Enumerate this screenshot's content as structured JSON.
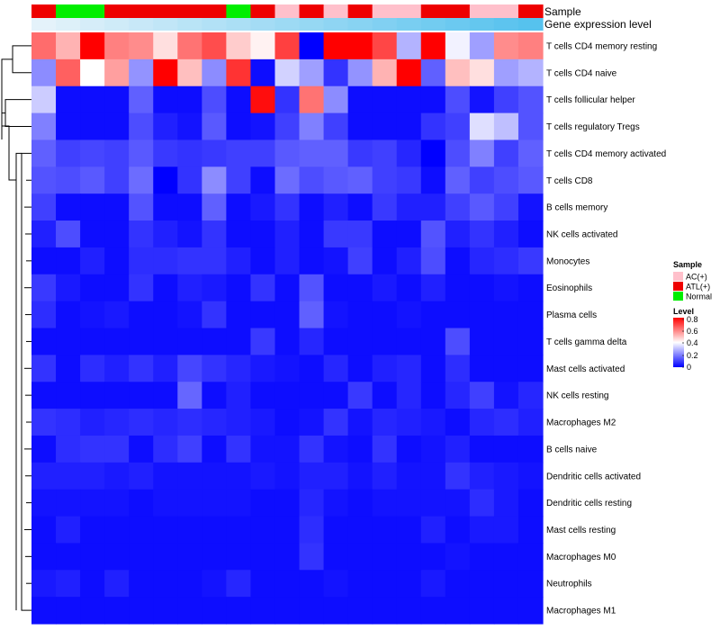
{
  "chart_data": {
    "type": "heatmap",
    "title": "",
    "annotation_rows": [
      {
        "name": "Sample",
        "values": [
          "ATL(+)",
          "Normal",
          "Normal",
          "ATL(+)",
          "ATL(+)",
          "ATL(+)",
          "ATL(+)",
          "ATL(+)",
          "Normal",
          "ATL(+)",
          "AC(+)",
          "ATL(+)",
          "AC(+)",
          "ATL(+)",
          "AC(+)",
          "AC(+)",
          "ATL(+)",
          "ATL(+)",
          "AC(+)",
          "AC(+)",
          "ATL(+)"
        ]
      },
      {
        "name": "Gene expression level",
        "values": [
          0.02,
          0.03,
          0.04,
          0.05,
          0.06,
          0.07,
          0.08,
          0.09,
          0.1,
          0.11,
          0.12,
          0.13,
          0.14,
          0.15,
          0.16,
          0.17,
          0.18,
          0.19,
          0.2,
          0.21,
          0.22
        ]
      }
    ],
    "rows": [
      "T cells CD4 memory resting",
      "T cells CD4 naive",
      "T cells follicular helper",
      "T cells regulatory  Tregs",
      "T cells CD4 memory activated",
      "T cells CD8",
      "B cells memory",
      "NK cells activated",
      "Monocytes",
      "Eosinophils",
      "Plasma cells",
      "T cells gamma delta",
      "Mast cells activated",
      "NK cells resting",
      "Macrophages M2",
      "B cells naive",
      "Dendritic cells activated",
      "Dendritic cells resting",
      "Mast cells resting",
      "Macrophages M0",
      "Neutrophils",
      "Macrophages M1"
    ],
    "values": [
      [
        0.63,
        0.52,
        0.8,
        0.6,
        0.58,
        0.45,
        0.62,
        0.68,
        0.48,
        0.42,
        0.7,
        0.0,
        0.8,
        0.8,
        0.69,
        0.28,
        0.8,
        0.38,
        0.25,
        0.58,
        0.6
      ],
      [
        0.22,
        0.65,
        0.4,
        0.55,
        0.23,
        0.8,
        0.5,
        0.22,
        0.72,
        0.02,
        0.33,
        0.25,
        0.08,
        0.23,
        0.52,
        0.8,
        0.15,
        0.5,
        0.45,
        0.25,
        0.28
      ],
      [
        0.32,
        0.02,
        0.02,
        0.02,
        0.15,
        0.02,
        0.02,
        0.12,
        0.02,
        0.78,
        0.08,
        0.62,
        0.22,
        0.02,
        0.02,
        0.02,
        0.02,
        0.12,
        0.03,
        0.1,
        0.13
      ],
      [
        0.2,
        0.02,
        0.02,
        0.02,
        0.12,
        0.05,
        0.03,
        0.14,
        0.02,
        0.03,
        0.1,
        0.2,
        0.1,
        0.02,
        0.02,
        0.02,
        0.08,
        0.1,
        0.35,
        0.3,
        0.13
      ],
      [
        0.15,
        0.1,
        0.11,
        0.1,
        0.14,
        0.09,
        0.08,
        0.09,
        0.1,
        0.1,
        0.14,
        0.15,
        0.15,
        0.09,
        0.1,
        0.06,
        0.0,
        0.12,
        0.2,
        0.1,
        0.15
      ],
      [
        0.13,
        0.12,
        0.14,
        0.1,
        0.17,
        0.0,
        0.08,
        0.22,
        0.1,
        0.02,
        0.17,
        0.12,
        0.14,
        0.15,
        0.1,
        0.09,
        0.02,
        0.15,
        0.1,
        0.12,
        0.14
      ],
      [
        0.1,
        0.02,
        0.02,
        0.02,
        0.13,
        0.02,
        0.02,
        0.15,
        0.02,
        0.04,
        0.08,
        0.02,
        0.05,
        0.02,
        0.09,
        0.05,
        0.05,
        0.1,
        0.14,
        0.1,
        0.03
      ],
      [
        0.05,
        0.12,
        0.02,
        0.02,
        0.08,
        0.05,
        0.03,
        0.08,
        0.02,
        0.02,
        0.05,
        0.02,
        0.09,
        0.09,
        0.02,
        0.02,
        0.13,
        0.05,
        0.08,
        0.05,
        0.02
      ],
      [
        0.02,
        0.02,
        0.05,
        0.02,
        0.07,
        0.07,
        0.08,
        0.08,
        0.05,
        0.02,
        0.05,
        0.02,
        0.03,
        0.1,
        0.02,
        0.05,
        0.12,
        0.02,
        0.06,
        0.07,
        0.09
      ],
      [
        0.09,
        0.04,
        0.02,
        0.02,
        0.08,
        0.02,
        0.05,
        0.04,
        0.02,
        0.08,
        0.02,
        0.13,
        0.02,
        0.02,
        0.04,
        0.02,
        0.05,
        0.02,
        0.02,
        0.03,
        0.02
      ],
      [
        0.07,
        0.02,
        0.03,
        0.04,
        0.02,
        0.02,
        0.03,
        0.08,
        0.02,
        0.02,
        0.02,
        0.15,
        0.03,
        0.02,
        0.02,
        0.03,
        0.02,
        0.02,
        0.02,
        0.02,
        0.02
      ],
      [
        0.02,
        0.02,
        0.02,
        0.02,
        0.02,
        0.02,
        0.02,
        0.02,
        0.02,
        0.09,
        0.02,
        0.06,
        0.02,
        0.02,
        0.02,
        0.02,
        0.02,
        0.12,
        0.02,
        0.02,
        0.02
      ],
      [
        0.08,
        0.02,
        0.07,
        0.05,
        0.08,
        0.05,
        0.11,
        0.08,
        0.06,
        0.04,
        0.03,
        0.02,
        0.06,
        0.02,
        0.05,
        0.06,
        0.02,
        0.07,
        0.02,
        0.02,
        0.02
      ],
      [
        0.02,
        0.02,
        0.02,
        0.02,
        0.02,
        0.02,
        0.16,
        0.02,
        0.05,
        0.02,
        0.02,
        0.02,
        0.02,
        0.09,
        0.02,
        0.06,
        0.02,
        0.06,
        0.1,
        0.03,
        0.06
      ],
      [
        0.08,
        0.07,
        0.05,
        0.06,
        0.07,
        0.06,
        0.07,
        0.06,
        0.05,
        0.04,
        0.02,
        0.03,
        0.08,
        0.03,
        0.06,
        0.05,
        0.04,
        0.02,
        0.06,
        0.07,
        0.05
      ],
      [
        0.02,
        0.07,
        0.08,
        0.08,
        0.02,
        0.07,
        0.1,
        0.02,
        0.08,
        0.03,
        0.03,
        0.08,
        0.03,
        0.02,
        0.08,
        0.02,
        0.03,
        0.05,
        0.02,
        0.02,
        0.02
      ],
      [
        0.05,
        0.05,
        0.05,
        0.04,
        0.05,
        0.03,
        0.03,
        0.03,
        0.03,
        0.04,
        0.03,
        0.05,
        0.05,
        0.03,
        0.05,
        0.03,
        0.03,
        0.08,
        0.05,
        0.04,
        0.03
      ],
      [
        0.03,
        0.03,
        0.03,
        0.03,
        0.02,
        0.03,
        0.03,
        0.03,
        0.03,
        0.02,
        0.02,
        0.06,
        0.03,
        0.02,
        0.03,
        0.03,
        0.03,
        0.03,
        0.07,
        0.04,
        0.02
      ],
      [
        0.02,
        0.05,
        0.02,
        0.02,
        0.02,
        0.02,
        0.02,
        0.02,
        0.02,
        0.02,
        0.02,
        0.07,
        0.02,
        0.02,
        0.02,
        0.02,
        0.05,
        0.02,
        0.04,
        0.04,
        0.02
      ],
      [
        0.02,
        0.02,
        0.02,
        0.02,
        0.02,
        0.02,
        0.02,
        0.02,
        0.02,
        0.02,
        0.02,
        0.08,
        0.02,
        0.02,
        0.02,
        0.02,
        0.02,
        0.03,
        0.02,
        0.02,
        0.02
      ],
      [
        0.04,
        0.05,
        0.02,
        0.05,
        0.02,
        0.02,
        0.02,
        0.03,
        0.06,
        0.02,
        0.02,
        0.02,
        0.03,
        0.02,
        0.02,
        0.02,
        0.04,
        0.02,
        0.02,
        0.02,
        0.02
      ],
      [
        0.02,
        0.02,
        0.02,
        0.02,
        0.02,
        0.02,
        0.02,
        0.02,
        0.02,
        0.02,
        0.02,
        0.02,
        0.02,
        0.02,
        0.02,
        0.02,
        0.02,
        0.02,
        0.02,
        0.02,
        0.02
      ]
    ],
    "legend_sample": {
      "title": "Sample",
      "items": [
        {
          "label": "AC(+)",
          "color": "#ffc0cb"
        },
        {
          "label": "ATL(+)",
          "color": "#ee0000"
        },
        {
          "label": "Normal",
          "color": "#00ee00"
        }
      ]
    },
    "legend_level": {
      "title": "Level",
      "ticks": [
        "0.8",
        "0.6",
        "0.4",
        "0.2",
        "0"
      ],
      "range": [
        0,
        0.8
      ]
    },
    "colors": {
      "low": "#0000ff",
      "mid": "#ffffff",
      "high": "#ff0000",
      "expr_low": "#e4f2fa",
      "expr_high": "#56c2ee"
    }
  }
}
